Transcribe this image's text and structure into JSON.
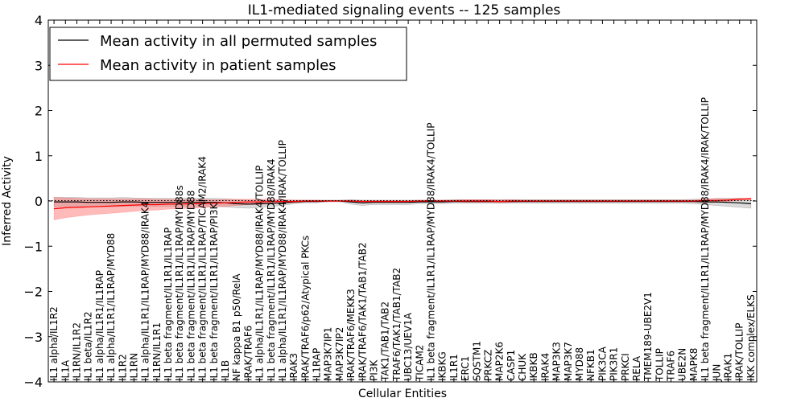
{
  "chart_data": {
    "type": "line",
    "title": "IL1-mediated signaling events -- 125 samples",
    "xlabel": "Cellular Entities",
    "ylabel": "Inferred Activity",
    "ylim": [
      -4,
      4
    ],
    "yticks": [
      "4",
      "3",
      "2",
      "1",
      "0",
      "−1",
      "−2",
      "−3",
      "−4"
    ],
    "grid": false,
    "legend_position": "top-left",
    "colors": {
      "permuted": "#000000",
      "patient": "#ff0000",
      "permuted_band": "#bbbbbb",
      "patient_band": "#ff6666"
    },
    "categories": [
      "IL1 alpha/IL1R2",
      "IL1A",
      "IL1RN/IL1R2",
      "IL1 beta/IL1R2",
      "IL1 alpha/IL1R1/IL1RAP",
      "IL1 alpha/IL1R1/IL1RAP/MYD88",
      "IL1R2",
      "IL1RN",
      "IL1 alpha/IL1R1/IL1RAP/MYD88/IRAK4",
      "IL1RN/IL1R1",
      "IL1 beta fragment/IL1R1/IL1RAP",
      "IL1 beta fragment/IL1R1/IL1RAP/MYD88s",
      "IL1 beta fragment/IL1R1/IL1RAP/MYD88",
      "IL1 beta fragment/IL1R1/IL1RAP/TICAM2/IRAK4",
      "IL1 beta fragment/IL1R1/IL1RAP/PI3K",
      "IL1B",
      "NF kappa B1 p50/RelA",
      "IRAK/TRAF6",
      "IL1 alpha/IL1R1/IL1RAP/MYD88/IRAK4/TOLLIP",
      "IL1 beta fragment/IL1R1/IL1RAP/MYD88/IRAK4",
      "IL1 alpha/IL1R1/IL1RAP/MYD88/IRAK4/IRAK/TOLLIP",
      "IRAK3",
      "IRAK/TRAF6/p62/Atypical PKCs",
      "IL1RAP",
      "MAP3K7IP1",
      "MAP3K7IP2",
      "IRAK/TRAF6/MEKK3",
      "IRAK/TRAF6/TAK1/TAB1/TAB2",
      "PI3K",
      "TAK1/TAB1/TAB2",
      "TRAF6/TAK1/TAB1/TAB2",
      "UBC13/UEV1A",
      "TICAM2",
      "IL1 beta fragment/IL1R1/IL1RAP/MYD88/IRAK4/TOLLIP",
      "IKBKG",
      "IL1R1",
      "ERC1",
      "SQSTM1",
      "PRKCZ",
      "MAP2K6",
      "CASP1",
      "CHUK",
      "IKBKB",
      "IRAK4",
      "MAP3K3",
      "MAP3K7",
      "MYD88",
      "NFKB1",
      "PIK3CA",
      "PIK3R1",
      "PRKCI",
      "RELA",
      "TMEM189-UBE2V1",
      "TOLLIP",
      "TRAF6",
      "UBE2N",
      "MAPK8",
      "IL1 beta fragment/IL1R1/IL1RAP/MYD88/IRAK4/IRAK/TOLLIP",
      "JUN",
      "IRAK1",
      "IRAK/TOLLIP",
      "IKK complex/ELKS"
    ],
    "series": [
      {
        "name": "Mean activity in all permuted samples",
        "color": "#000000",
        "values": [
          -0.02,
          -0.02,
          -0.02,
          -0.03,
          -0.03,
          -0.03,
          -0.02,
          -0.02,
          -0.03,
          -0.03,
          -0.03,
          -0.03,
          -0.03,
          -0.03,
          -0.03,
          -0.04,
          -0.06,
          -0.07,
          -0.06,
          -0.05,
          -0.04,
          -0.02,
          -0.01,
          -0.01,
          0.0,
          0.0,
          -0.02,
          -0.04,
          -0.03,
          -0.03,
          -0.03,
          -0.03,
          -0.02,
          -0.02,
          -0.02,
          -0.01,
          -0.01,
          -0.01,
          -0.01,
          -0.01,
          -0.01,
          -0.01,
          -0.01,
          -0.01,
          -0.01,
          -0.01,
          -0.01,
          -0.01,
          -0.01,
          -0.01,
          -0.01,
          -0.01,
          -0.01,
          -0.01,
          -0.01,
          -0.01,
          -0.01,
          -0.02,
          -0.02,
          -0.03,
          -0.04,
          -0.06
        ],
        "band": [
          0.1,
          0.1,
          0.1,
          0.1,
          0.1,
          0.1,
          0.1,
          0.09,
          0.09,
          0.09,
          0.09,
          0.09,
          0.09,
          0.09,
          0.09,
          0.09,
          0.09,
          0.09,
          0.08,
          0.07,
          0.06,
          0.04,
          0.03,
          0.03,
          0.02,
          0.02,
          0.05,
          0.06,
          0.05,
          0.05,
          0.05,
          0.05,
          0.04,
          0.04,
          0.04,
          0.04,
          0.04,
          0.04,
          0.04,
          0.04,
          0.04,
          0.04,
          0.04,
          0.04,
          0.04,
          0.04,
          0.04,
          0.04,
          0.04,
          0.04,
          0.04,
          0.04,
          0.04,
          0.04,
          0.04,
          0.04,
          0.05,
          0.06,
          0.08,
          0.09,
          0.1,
          0.1
        ]
      },
      {
        "name": "Mean activity in patient samples",
        "color": "#ff0000",
        "values": [
          -0.17,
          -0.15,
          -0.14,
          -0.13,
          -0.12,
          -0.11,
          -0.1,
          -0.09,
          -0.08,
          -0.08,
          -0.07,
          -0.07,
          -0.06,
          -0.06,
          -0.05,
          -0.04,
          -0.03,
          -0.02,
          -0.02,
          -0.01,
          -0.01,
          -0.01,
          0.0,
          0.0,
          0.0,
          0.0,
          0.0,
          -0.01,
          -0.01,
          -0.01,
          -0.01,
          -0.01,
          0.0,
          0.0,
          0.0,
          0.0,
          0.0,
          0.0,
          0.0,
          -0.01,
          0.0,
          0.0,
          0.0,
          0.0,
          0.0,
          0.0,
          0.0,
          0.0,
          0.0,
          0.0,
          0.0,
          0.0,
          0.0,
          0.0,
          0.0,
          0.0,
          0.0,
          0.01,
          0.01,
          0.02,
          0.04,
          0.05
        ],
        "band": [
          0.25,
          0.22,
          0.2,
          0.18,
          0.17,
          0.16,
          0.15,
          0.14,
          0.13,
          0.12,
          0.11,
          0.1,
          0.1,
          0.09,
          0.08,
          0.08,
          0.07,
          0.06,
          0.06,
          0.05,
          0.04,
          0.03,
          0.02,
          0.02,
          0.01,
          0.01,
          0.02,
          0.02,
          0.02,
          0.02,
          0.02,
          0.02,
          0.02,
          0.02,
          0.02,
          0.02,
          0.03,
          0.03,
          0.03,
          0.03,
          0.03,
          0.02,
          0.02,
          0.02,
          0.02,
          0.02,
          0.02,
          0.02,
          0.02,
          0.02,
          0.02,
          0.02,
          0.02,
          0.02,
          0.02,
          0.02,
          0.02,
          0.04,
          0.04,
          0.03,
          0.02,
          0.02
        ]
      }
    ]
  }
}
